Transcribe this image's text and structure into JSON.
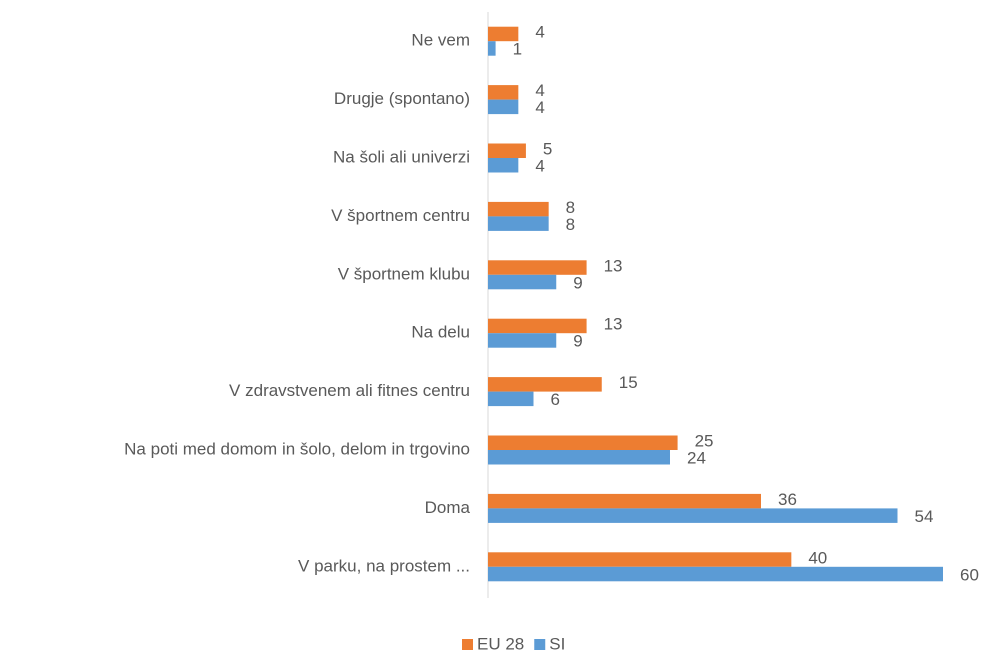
{
  "chart_data": {
    "type": "hbar",
    "categories": [
      "Ne vem",
      "Drugje (spontano)",
      "Na šoli ali univerzi",
      "V športnem centru",
      "V športnem klubu",
      "Na delu",
      "V zdravstvenem ali fitnes centru",
      "Na poti med domom in šolo, delom in trgovino",
      "Doma",
      "V parku, na prostem ..."
    ],
    "series": [
      {
        "name": "EU 28",
        "color": "#ed7d31",
        "values": [
          4,
          4,
          5,
          8,
          13,
          13,
          15,
          25,
          36,
          40
        ]
      },
      {
        "name": "SI",
        "color": "#5b9bd5",
        "values": [
          1,
          4,
          4,
          8,
          9,
          9,
          6,
          24,
          54,
          60
        ]
      }
    ],
    "xlim": [
      0,
      60
    ]
  }
}
